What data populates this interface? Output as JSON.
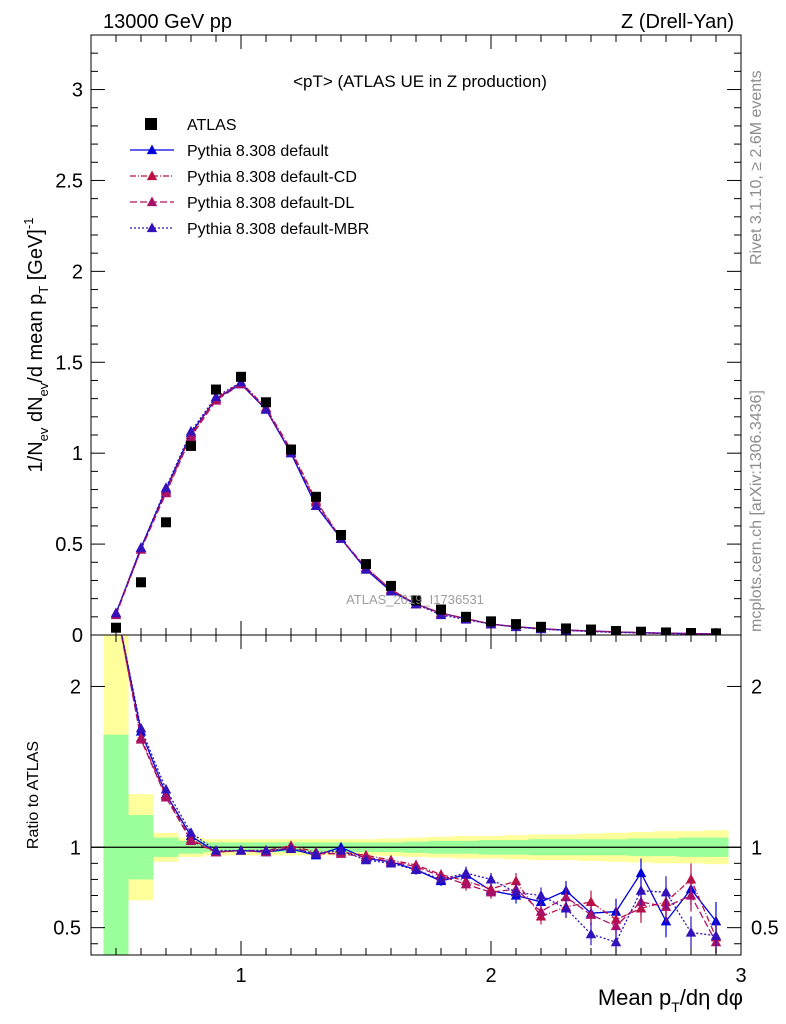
{
  "header": {
    "left": "13000 GeV pp",
    "right": "Z (Drell-Yan)"
  },
  "side": {
    "rivet": "Rivet 3.1.10, ≥ 2.6M events",
    "mcplots": "mcplots.cern.ch [arXiv:1306.3436]"
  },
  "chart_data": {
    "type": "line",
    "title": "<pT> (ATLAS UE in Z production)",
    "watermark": "ATLAS_2019_I1736531",
    "ylabel": "1/N_ev dN_ev/d mean p_T [GeV]^-1",
    "xlabel": "Mean p_T/dη dφ",
    "ratio_ylabel": "Ratio to ATLAS",
    "xlim": [
      0.4,
      3.0
    ],
    "ylim": [
      0,
      3.3
    ],
    "ratio_ylim": [
      0.33,
      2.32
    ],
    "x_ticks": [
      "1",
      "2",
      "3"
    ],
    "y_ticks": [
      "0",
      "0.5",
      "1",
      "1.5",
      "2",
      "2.5",
      "3"
    ],
    "ratio_y_ticks": [
      "0.5",
      "1",
      "2"
    ],
    "legend_position": "top-left",
    "x": [
      0.5,
      0.6,
      0.7,
      0.8,
      0.9,
      1.0,
      1.1,
      1.2,
      1.3,
      1.4,
      1.5,
      1.6,
      1.7,
      1.8,
      1.9,
      2.0,
      2.1,
      2.2,
      2.3,
      2.4,
      2.5,
      2.6,
      2.7,
      2.8,
      2.9
    ],
    "series": [
      {
        "name": "ATLAS",
        "color": "#000000",
        "marker": "square",
        "values": [
          0.04,
          0.29,
          0.62,
          1.04,
          1.35,
          1.42,
          1.28,
          1.02,
          0.76,
          0.55,
          0.39,
          0.27,
          0.19,
          0.14,
          0.1,
          0.075,
          0.06,
          0.045,
          0.036,
          0.03,
          0.022,
          0.018,
          0.014,
          0.011,
          0.009
        ]
      },
      {
        "name": "Pythia 8.308 default",
        "color": "#0000dd",
        "dash": "",
        "values": [
          0.12,
          0.48,
          0.8,
          1.11,
          1.3,
          1.38,
          1.24,
          1.0,
          0.71,
          0.53,
          0.36,
          0.24,
          0.17,
          0.12,
          0.09,
          0.06,
          0.045,
          0.035,
          0.027,
          0.022,
          0.017,
          0.013,
          0.01,
          0.008,
          0.006
        ]
      },
      {
        "name": "Pythia 8.308 default-CD",
        "color": "#bb1144",
        "dash": "6 2 1 2",
        "values": [
          0.12,
          0.47,
          0.79,
          1.1,
          1.3,
          1.39,
          1.25,
          1.02,
          0.74,
          0.53,
          0.37,
          0.25,
          0.17,
          0.12,
          0.09,
          0.06,
          0.046,
          0.035,
          0.027,
          0.022,
          0.017,
          0.013,
          0.01,
          0.008,
          0.006
        ]
      },
      {
        "name": "Pythia 8.308 default-DL",
        "color": "#aa1166",
        "dash": "7 3",
        "values": [
          0.11,
          0.47,
          0.78,
          1.09,
          1.29,
          1.38,
          1.24,
          1.01,
          0.73,
          0.53,
          0.37,
          0.25,
          0.17,
          0.12,
          0.09,
          0.06,
          0.045,
          0.034,
          0.026,
          0.021,
          0.016,
          0.012,
          0.009,
          0.007,
          0.005
        ]
      },
      {
        "name": "Pythia 8.308 default-MBR",
        "color": "#3311bb",
        "dash": "2 2",
        "values": [
          0.12,
          0.48,
          0.81,
          1.12,
          1.31,
          1.39,
          1.24,
          1.0,
          0.71,
          0.53,
          0.36,
          0.24,
          0.17,
          0.11,
          0.085,
          0.06,
          0.044,
          0.032,
          0.025,
          0.019,
          0.014,
          0.011,
          0.008,
          0.006,
          0.004
        ]
      }
    ],
    "ratio_series": [
      {
        "name": "Pythia 8.308 default",
        "values": [
          3.0,
          1.72,
          1.33,
          1.07,
          0.97,
          0.98,
          0.97,
          0.99,
          0.95,
          1.0,
          0.93,
          0.91,
          0.86,
          0.79,
          0.83,
          0.73,
          0.7,
          0.66,
          0.73,
          0.59,
          0.6,
          0.84,
          0.54,
          0.74,
          0.54
        ]
      },
      {
        "name": "Pythia 8.308 default-CD",
        "values": [
          3.0,
          1.68,
          1.32,
          1.05,
          0.97,
          0.98,
          0.98,
          1.01,
          0.97,
          0.97,
          0.95,
          0.92,
          0.89,
          0.83,
          0.79,
          0.74,
          0.79,
          0.57,
          0.63,
          0.66,
          0.55,
          0.62,
          0.66,
          0.8,
          0.44
        ]
      },
      {
        "name": "Pythia 8.308 default-DL",
        "values": [
          3.0,
          1.67,
          1.31,
          1.04,
          0.97,
          0.98,
          0.97,
          1.0,
          0.96,
          0.96,
          0.94,
          0.91,
          0.88,
          0.82,
          0.77,
          0.72,
          0.74,
          0.6,
          0.69,
          0.58,
          0.51,
          0.66,
          0.63,
          0.7,
          0.41
        ]
      },
      {
        "name": "Pythia 8.308 default-MBR",
        "values": [
          3.0,
          1.74,
          1.36,
          1.09,
          0.98,
          0.98,
          0.98,
          0.99,
          0.96,
          0.98,
          0.92,
          0.9,
          0.86,
          0.8,
          0.84,
          0.8,
          0.72,
          0.7,
          0.62,
          0.46,
          0.41,
          0.73,
          0.72,
          0.47,
          0.45
        ]
      }
    ],
    "ratio_errors": [
      0.0,
      0.02,
      0.02,
      0.02,
      0.01,
      0.01,
      0.01,
      0.01,
      0.02,
      0.02,
      0.02,
      0.02,
      0.03,
      0.03,
      0.04,
      0.04,
      0.05,
      0.05,
      0.06,
      0.07,
      0.08,
      0.09,
      0.1,
      0.1,
      0.12
    ],
    "uncertainty_bands": {
      "x_edges": [
        0.45,
        0.55,
        0.65,
        0.75,
        0.85,
        0.95,
        1.05,
        1.15,
        1.25,
        1.35,
        1.45,
        1.55,
        1.65,
        1.75,
        1.85,
        1.95,
        2.05,
        2.15,
        2.25,
        2.35,
        2.45,
        2.55,
        2.65,
        2.75,
        2.85,
        2.95
      ],
      "stat_half_width": [
        0.7,
        0.2,
        0.06,
        0.04,
        0.03,
        0.03,
        0.03,
        0.03,
        0.03,
        0.03,
        0.03,
        0.03,
        0.035,
        0.04,
        0.04,
        0.045,
        0.045,
        0.05,
        0.05,
        0.05,
        0.05,
        0.055,
        0.055,
        0.06,
        0.06
      ],
      "total_half_width": [
        1.4,
        0.33,
        0.09,
        0.06,
        0.05,
        0.05,
        0.05,
        0.05,
        0.05,
        0.05,
        0.05,
        0.055,
        0.06,
        0.065,
        0.07,
        0.07,
        0.075,
        0.08,
        0.08,
        0.085,
        0.09,
        0.095,
        0.1,
        0.1,
        0.105
      ],
      "stat_color": "#9bff9b",
      "total_color": "#ffff9b"
    }
  }
}
